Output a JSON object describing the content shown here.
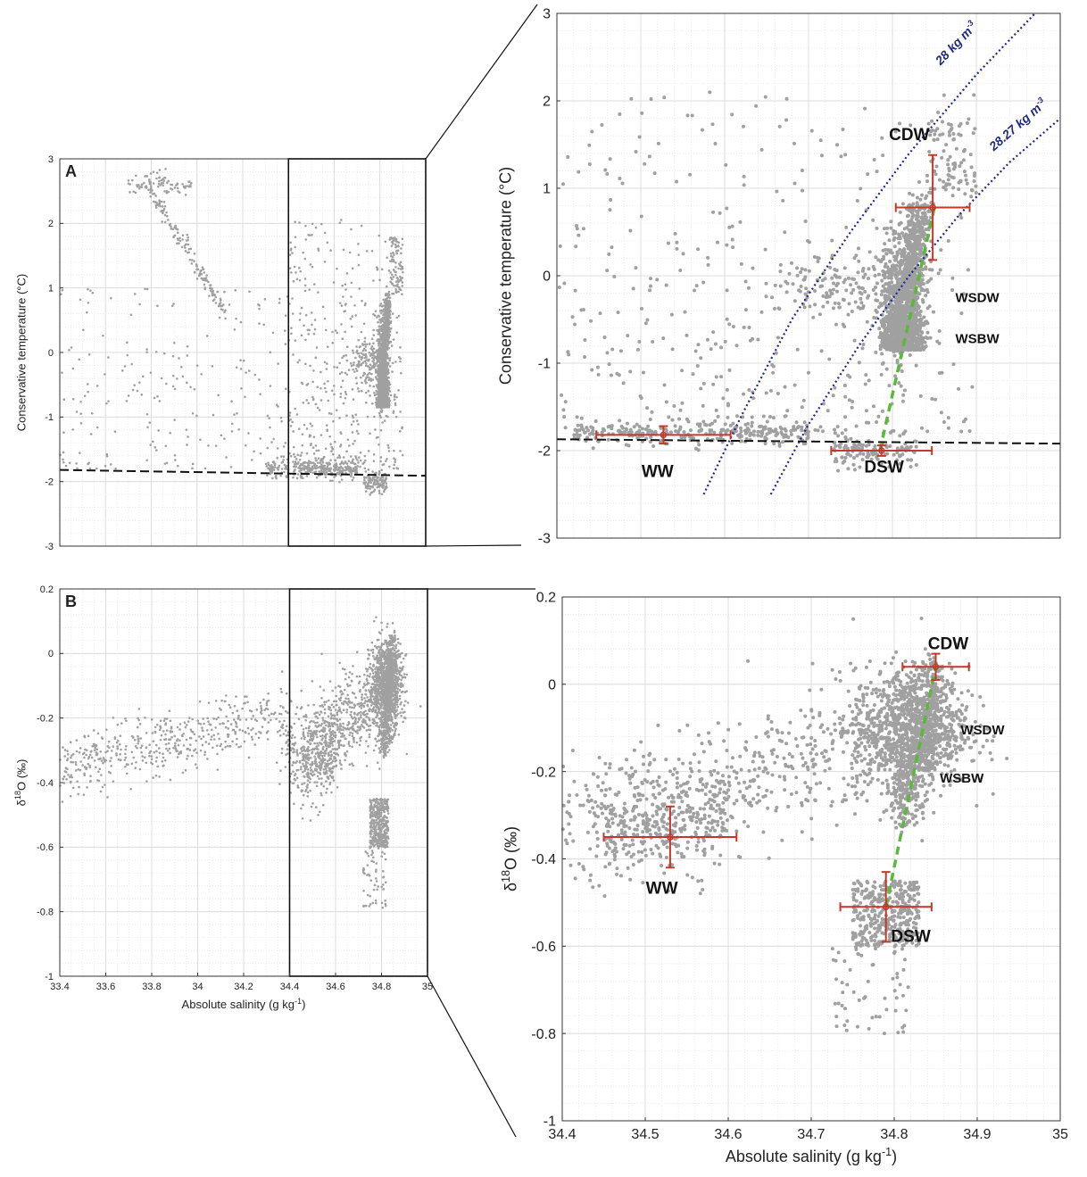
{
  "colors": {
    "points": "#a0a0a0",
    "errorbar": "#c0392b",
    "mixing_line": "#5cb83c",
    "isopycnal": "#1f2a80",
    "freezing_line": "#111111",
    "grid": "#dcdcdc"
  },
  "chart_data": [
    {
      "id": "A",
      "type": "scatter",
      "panel_letter": "A",
      "xlabel": "",
      "ylabel": "Conservative temperature (°C)",
      "xlim": [
        33.4,
        35
      ],
      "ylim": [
        -3,
        3
      ],
      "xticks": [
        "33.4",
        "33.6",
        "33.8",
        "34",
        "34.2",
        "34.4",
        "34.6",
        "34.8",
        "35"
      ],
      "yticks": [
        "-3",
        "-2",
        "-1",
        "0",
        "1",
        "2",
        "3"
      ],
      "show_xticks": false,
      "grid": true,
      "zoom_box": {
        "x": [
          34.4,
          34.9
        ]
      },
      "freezing_line": {
        "x": [
          33.4,
          35
        ],
        "y": [
          -1.82,
          -1.91
        ]
      }
    },
    {
      "id": "B",
      "type": "scatter",
      "panel_letter": "B",
      "xlabel": "Absolute salinity (g kg",
      "xlabel_sup": "-1",
      "xlabel_tail": ")",
      "ylabel": "δ",
      "ylabel_sup": "18",
      "ylabel_tail": "O (‰)",
      "xlim": [
        33.4,
        35
      ],
      "ylim": [
        -1,
        0.2
      ],
      "xticks": [
        "33.4",
        "33.6",
        "33.8",
        "34",
        "34.2",
        "34.4",
        "34.6",
        "34.8",
        "35"
      ],
      "yticks": [
        "-1",
        "-0.8",
        "-0.6",
        "-0.4",
        "-0.2",
        "0",
        "0.2"
      ],
      "show_xticks": true,
      "grid": true,
      "zoom_box": {
        "x": [
          34.4,
          34.9
        ]
      }
    },
    {
      "id": "A_zoom",
      "type": "scatter",
      "xlabel": "",
      "ylabel": "Conservative temperature (°C)",
      "xlim": [
        34.4,
        35
      ],
      "ylim": [
        -3,
        3
      ],
      "yticks": [
        "-3",
        "-2",
        "-1",
        "0",
        "1",
        "2",
        "3"
      ],
      "show_xticks": false,
      "grid": true,
      "freezing_line": {
        "x": [
          34.4,
          35
        ],
        "y": [
          -1.87,
          -1.92
        ]
      },
      "isopycnals": [
        {
          "label": "28 kg m",
          "label_sup": "-3",
          "x": [
            34.575,
            34.62,
            34.68,
            34.75,
            34.82,
            34.9,
            34.97
          ],
          "y": [
            -2.5,
            -1.6,
            -0.5,
            0.5,
            1.4,
            2.3,
            3.0
          ]
        },
        {
          "label": "28.27 kg m",
          "label_sup": "-3",
          "x": [
            34.655,
            34.7,
            34.76,
            34.82,
            34.88,
            34.94,
            35.0
          ],
          "y": [
            -2.5,
            -1.7,
            -0.8,
            0.0,
            0.7,
            1.3,
            1.8
          ]
        }
      ],
      "mixing_line": {
        "x": [
          34.785,
          34.85
        ],
        "y": [
          -2.0,
          0.78
        ]
      },
      "water_masses": [
        {
          "name": "CDW",
          "x": 34.848,
          "y": 0.78,
          "xerr": 0.044,
          "yerr": 0.6,
          "label_pos": [
            34.82,
            1.55
          ],
          "small": false
        },
        {
          "name": "WW",
          "x": 34.527,
          "y": -1.82,
          "xerr": 0.08,
          "yerr": 0.1,
          "label_pos": [
            34.52,
            -2.3
          ],
          "small": false
        },
        {
          "name": "DSW",
          "x": 34.787,
          "y": -2.0,
          "xerr": 0.06,
          "yerr": 0.06,
          "label_pos": [
            34.79,
            -2.25
          ],
          "small": false
        },
        {
          "name": "WSDW",
          "label_pos": [
            34.875,
            -0.3
          ],
          "small": true
        },
        {
          "name": "WSBW",
          "label_pos": [
            34.875,
            -0.77
          ],
          "small": true
        }
      ]
    },
    {
      "id": "B_zoom",
      "type": "scatter",
      "xlabel": "Absolute salinity (g kg",
      "xlabel_sup": "-1",
      "xlabel_tail": ")",
      "ylabel": "δ",
      "ylabel_sup": "18",
      "ylabel_tail": "O (‰)",
      "xlim": [
        34.4,
        35
      ],
      "ylim": [
        -1,
        0.2
      ],
      "xticks": [
        "34.4",
        "34.5",
        "34.6",
        "34.7",
        "34.8",
        "34.9",
        "35"
      ],
      "yticks": [
        "-1",
        "-0.8",
        "-0.6",
        "-0.4",
        "-0.2",
        "0",
        "0.2"
      ],
      "show_xticks": true,
      "grid": true,
      "mixing_line": {
        "x": [
          34.79,
          34.85
        ],
        "y": [
          -0.51,
          0.04
        ]
      },
      "water_masses": [
        {
          "name": "CDW",
          "x": 34.85,
          "y": 0.04,
          "xerr": 0.04,
          "yerr": 0.03,
          "label_pos": [
            34.865,
            0.08
          ],
          "small": false
        },
        {
          "name": "WW",
          "x": 34.53,
          "y": -0.35,
          "xerr": 0.08,
          "yerr": 0.07,
          "label_pos": [
            34.52,
            -0.48
          ],
          "small": false
        },
        {
          "name": "DSW",
          "x": 34.79,
          "y": -0.51,
          "xerr": 0.055,
          "yerr": 0.08,
          "label_pos": [
            34.82,
            -0.59
          ],
          "small": false
        },
        {
          "name": "WSDW",
          "label_pos": [
            34.88,
            -0.115
          ],
          "small": true
        },
        {
          "name": "WSBW",
          "label_pos": [
            34.855,
            -0.225
          ],
          "small": true
        }
      ]
    }
  ]
}
